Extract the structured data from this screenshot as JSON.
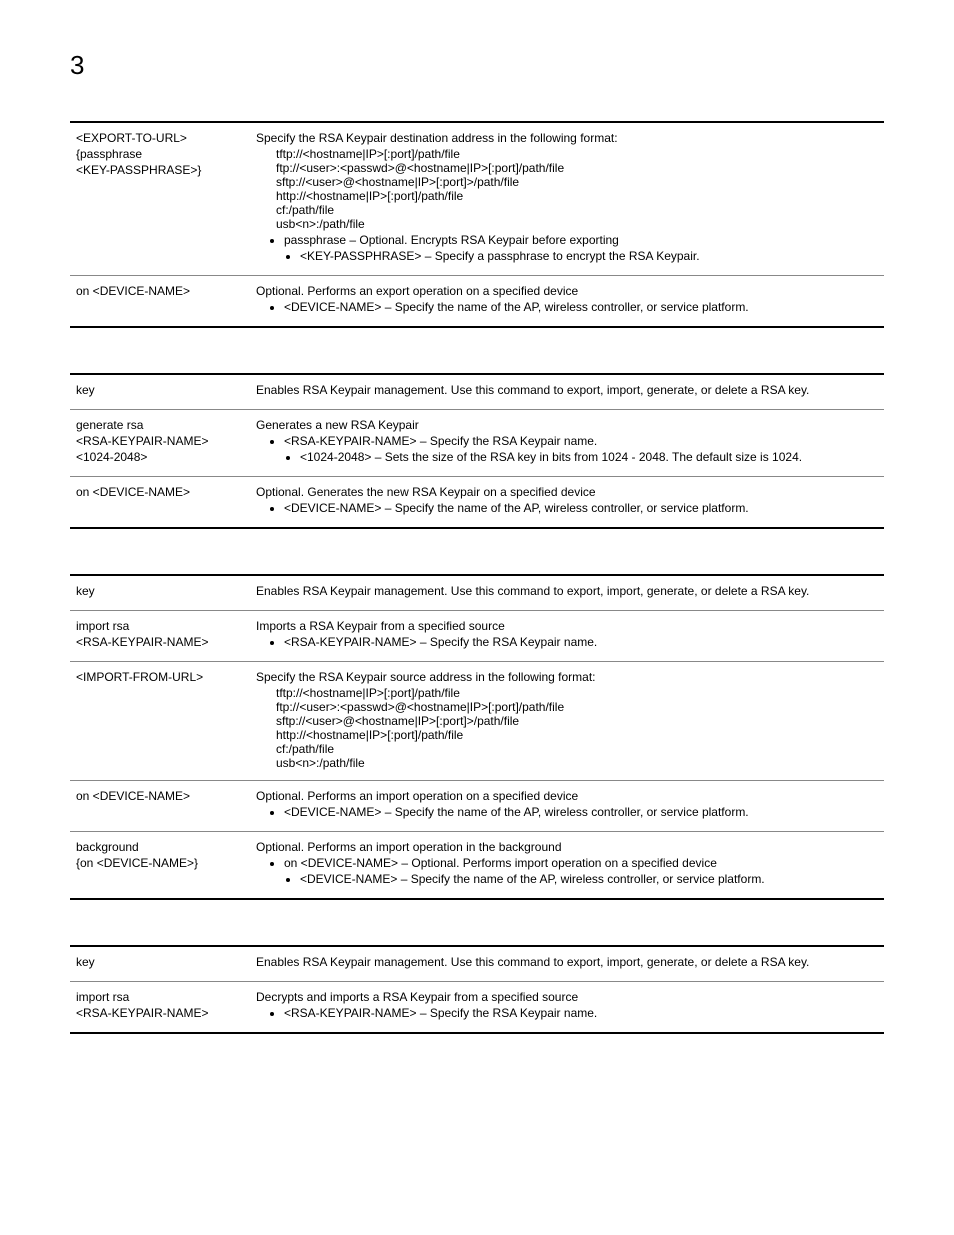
{
  "page_number": "3",
  "tables": [
    {
      "rows": [
        {
          "left": [
            "<EXPORT-TO-URL>",
            "{passphrase",
            "<KEY-PASSPHRASE>}"
          ],
          "right": {
            "lead": "Specify the RSA Keypair destination address in the following format:",
            "indented": [
              "tftp://<hostname|IP>[:port]/path/file",
              "ftp://<user>:<passwd>@<hostname|IP>[:port]/path/file",
              "sftp://<user>@<hostname|IP>[:port]>/path/file",
              "http://<hostname|IP>[:port]/path/file",
              "cf:/path/file",
              "usb<n>:/path/file"
            ],
            "bullets1": [
              "passphrase – Optional. Encrypts RSA Keypair before exporting"
            ],
            "bullets2": [
              "<KEY-PASSPHRASE> – Specify a passphrase to encrypt the RSA Keypair."
            ]
          }
        },
        {
          "left": [
            "on <DEVICE-NAME>"
          ],
          "right": {
            "lead": "Optional. Performs an export operation on a specified device",
            "bullets1": [
              "<DEVICE-NAME> – Specify the name of the AP, wireless controller, or service platform."
            ]
          }
        }
      ]
    },
    {
      "rows": [
        {
          "left": [
            "key"
          ],
          "right": {
            "lead": "Enables RSA Keypair management. Use this command to export, import, generate, or delete a RSA key."
          }
        },
        {
          "left": [
            "generate rsa",
            "<RSA-KEYPAIR-NAME>",
            "<1024-2048>"
          ],
          "right": {
            "lead": "Generates a new RSA Keypair",
            "bullets1": [
              "<RSA-KEYPAIR-NAME> – Specify the RSA Keypair name."
            ],
            "bullets2": [
              "<1024-2048> – Sets the size of the RSA key in bits from 1024 - 2048. The default size is 1024."
            ]
          }
        },
        {
          "left": [
            "on <DEVICE-NAME>"
          ],
          "right": {
            "lead": "Optional. Generates the new RSA Keypair on a specified device",
            "bullets1": [
              "<DEVICE-NAME> – Specify the name of the AP, wireless controller, or service platform."
            ]
          }
        }
      ]
    },
    {
      "rows": [
        {
          "left": [
            "key"
          ],
          "right": {
            "lead": "Enables RSA Keypair management. Use this command to export, import, generate, or delete a RSA key."
          }
        },
        {
          "left": [
            "import rsa",
            "<RSA-KEYPAIR-NAME>"
          ],
          "right": {
            "lead": "Imports a RSA Keypair from a specified source",
            "bullets1": [
              "<RSA-KEYPAIR-NAME> – Specify the RSA Keypair name."
            ]
          }
        },
        {
          "left": [
            "<IMPORT-FROM-URL>"
          ],
          "right": {
            "lead": "Specify the RSA Keypair source address in the following format:",
            "indented": [
              "tftp://<hostname|IP>[:port]/path/file",
              "ftp://<user>:<passwd>@<hostname|IP>[:port]/path/file",
              "sftp://<user>@<hostname|IP>[:port]>/path/file",
              "http://<hostname|IP>[:port]/path/file",
              "cf:/path/file",
              "usb<n>:/path/file"
            ]
          }
        },
        {
          "left": [
            "on <DEVICE-NAME>"
          ],
          "right": {
            "lead": "Optional. Performs an import operation on a specified device",
            "bullets1": [
              "<DEVICE-NAME> – Specify the name of the AP, wireless controller, or service platform."
            ]
          }
        },
        {
          "left": [
            "background",
            "{on <DEVICE-NAME>}"
          ],
          "right": {
            "lead": "Optional. Performs an import operation in the background",
            "bullets1": [
              "on <DEVICE-NAME> – Optional. Performs import operation on a specified device"
            ],
            "bullets2": [
              "<DEVICE-NAME> – Specify the name of the AP, wireless controller, or service platform."
            ]
          }
        }
      ]
    },
    {
      "rows": [
        {
          "left": [
            "key"
          ],
          "right": {
            "lead": "Enables RSA Keypair management. Use this command to export, import, generate, or delete a RSA key."
          }
        },
        {
          "left": [
            "import rsa",
            "<RSA-KEYPAIR-NAME>"
          ],
          "right": {
            "lead": "Decrypts and imports a RSA Keypair from a specified source",
            "bullets1": [
              "<RSA-KEYPAIR-NAME> – Specify the RSA Keypair name."
            ]
          }
        }
      ]
    }
  ]
}
